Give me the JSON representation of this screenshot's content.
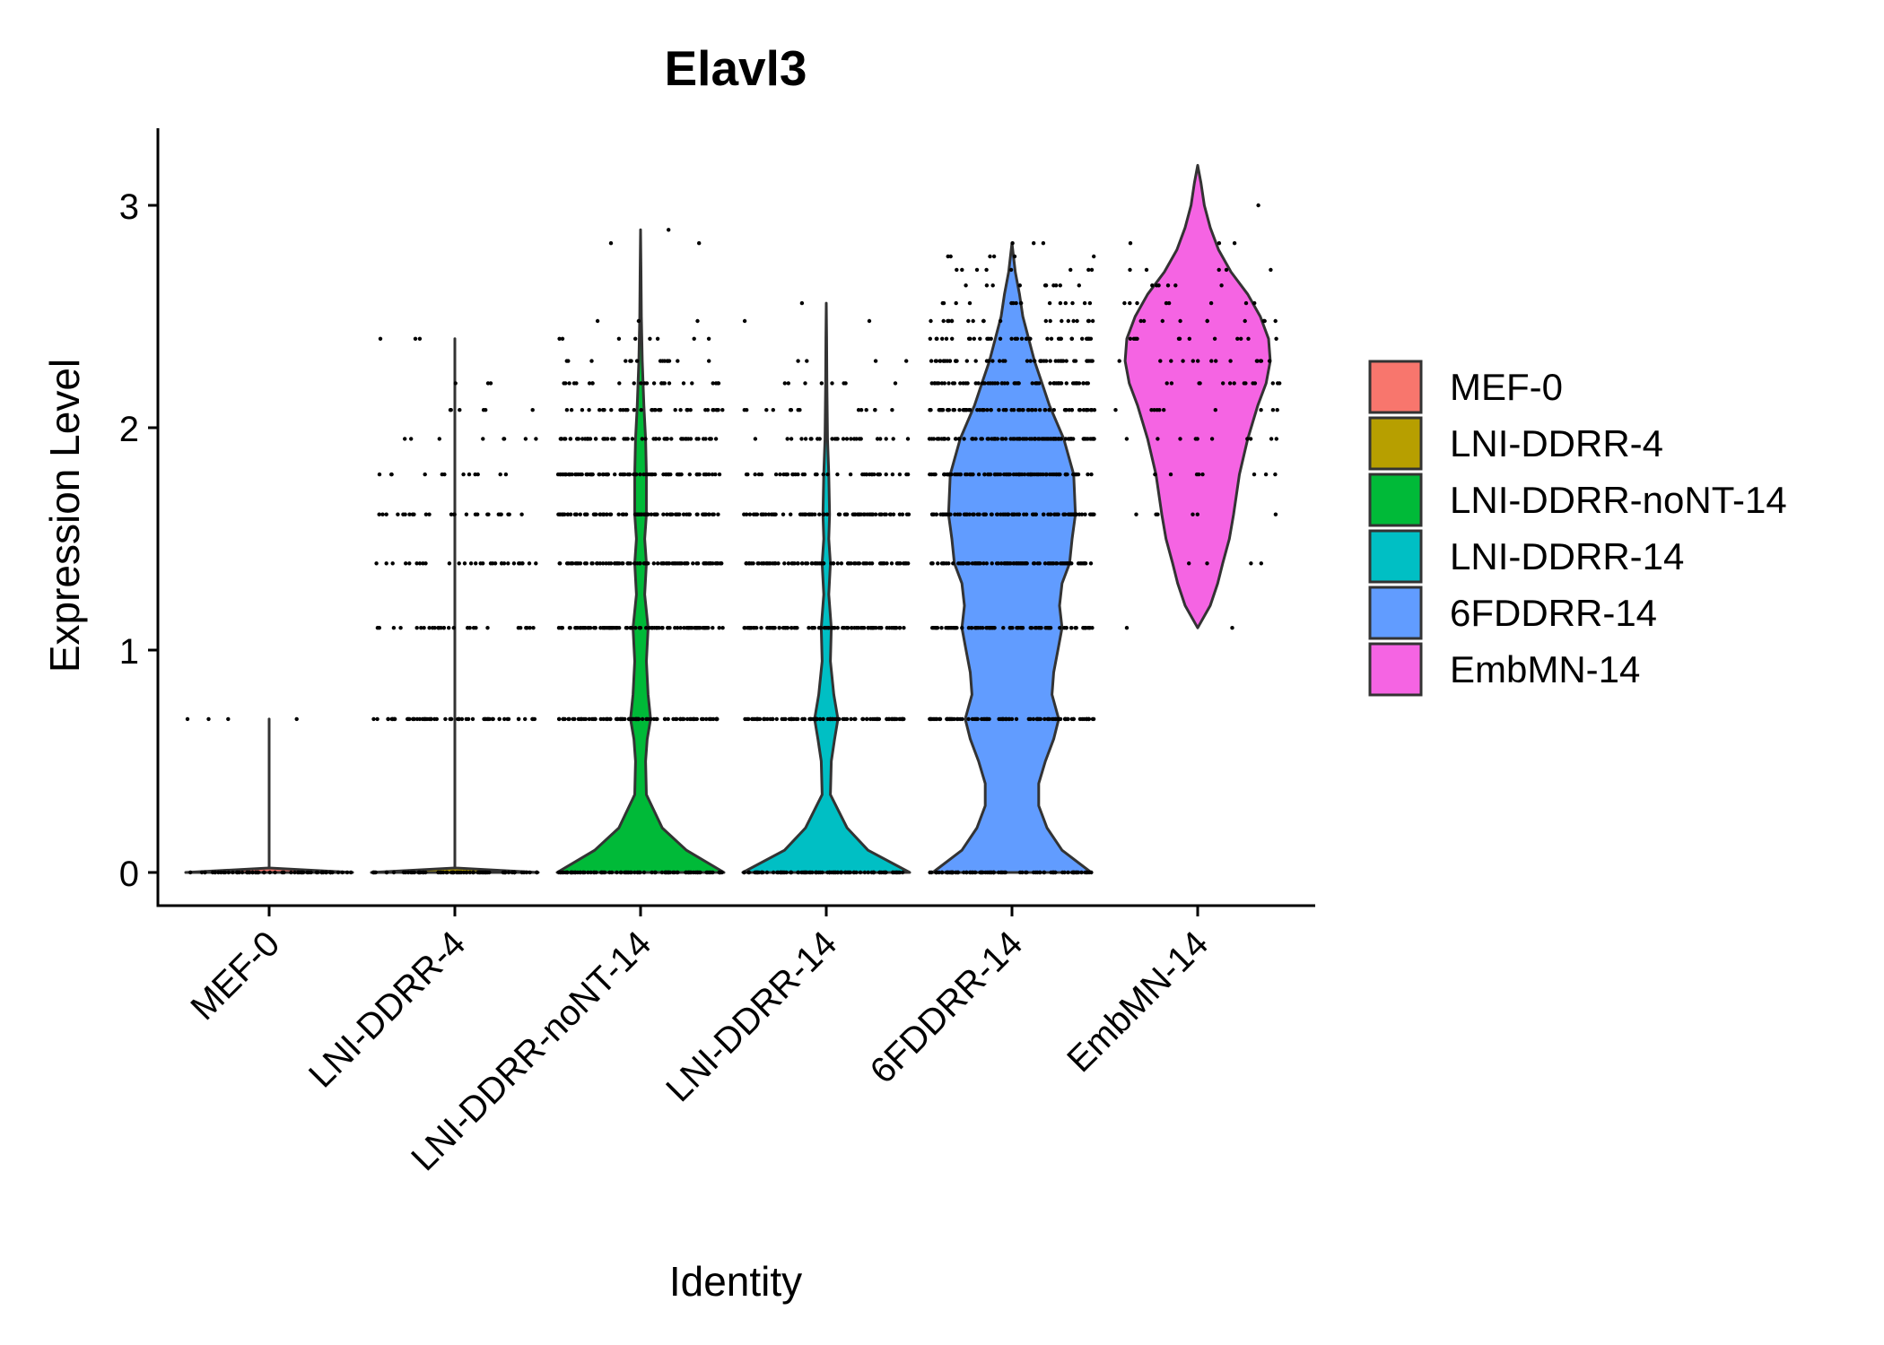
{
  "chart_data": {
    "type": "violin",
    "title": "Elavl3",
    "xlabel": "Identity",
    "ylabel": "Expression Level",
    "ylim": [
      -0.15,
      3.35
    ],
    "yticks": [
      0,
      1,
      2,
      3
    ],
    "grid": false,
    "legend_position": "right",
    "categories": [
      "MEF-0",
      "LNI-DDRR-4",
      "LNI-DDRR-noNT-14",
      "LNI-DDRR-14",
      "6FDDRR-14",
      "EmbMN-14"
    ],
    "expression_levels": [
      0,
      0.69,
      1.1,
      1.39,
      1.61,
      1.79,
      1.95,
      2.08,
      2.2,
      2.3,
      2.4,
      2.48,
      2.56,
      2.64,
      2.71,
      2.77,
      2.83
    ],
    "series": [
      {
        "name": "MEF-0",
        "color": "#F8766D",
        "max": 0.69,
        "violin_density": [
          [
            0,
            1.0
          ],
          [
            0.02,
            0.0
          ],
          [
            0.69,
            0.0
          ]
        ],
        "dot_levels": [
          0,
          0.69
        ],
        "dot_counts": [
          60,
          4
        ]
      },
      {
        "name": "LNI-DDRR-4",
        "color": "#B79F00",
        "max": 2.4,
        "violin_density": [
          [
            0,
            1.0
          ],
          [
            0.02,
            0.0
          ],
          [
            2.4,
            0.0
          ]
        ],
        "dot_levels": [
          0,
          0.69,
          1.1,
          1.39,
          1.61,
          1.79,
          1.95,
          2.08,
          2.2,
          2.4
        ],
        "dot_counts": [
          70,
          60,
          30,
          30,
          25,
          12,
          8,
          6,
          3,
          3
        ]
      },
      {
        "name": "LNI-DDRR-noNT-14",
        "color": "#00BA38",
        "max": 2.89,
        "violin_density": [
          [
            0,
            1.0
          ],
          [
            0.1,
            0.55
          ],
          [
            0.2,
            0.26
          ],
          [
            0.35,
            0.07
          ],
          [
            0.5,
            0.06
          ],
          [
            0.6,
            0.08
          ],
          [
            0.69,
            0.12
          ],
          [
            0.8,
            0.09
          ],
          [
            0.95,
            0.07
          ],
          [
            1.1,
            0.09
          ],
          [
            1.25,
            0.05
          ],
          [
            1.39,
            0.07
          ],
          [
            1.5,
            0.05
          ],
          [
            1.61,
            0.07
          ],
          [
            1.79,
            0.07
          ],
          [
            1.95,
            0.06
          ],
          [
            2.1,
            0.04
          ],
          [
            2.3,
            0.02
          ],
          [
            2.5,
            0.01
          ],
          [
            2.7,
            0.005
          ],
          [
            2.89,
            0.0
          ]
        ],
        "dot_levels": [
          0,
          0.69,
          1.1,
          1.39,
          1.61,
          1.79,
          1.95,
          2.08,
          2.2,
          2.3,
          2.4,
          2.48,
          2.83,
          2.89
        ],
        "dot_counts": [
          90,
          90,
          90,
          90,
          90,
          80,
          55,
          35,
          25,
          15,
          8,
          3,
          2,
          1
        ]
      },
      {
        "name": "LNI-DDRR-14",
        "color": "#00BFC4",
        "max": 2.56,
        "violin_density": [
          [
            0,
            1.0
          ],
          [
            0.1,
            0.5
          ],
          [
            0.2,
            0.25
          ],
          [
            0.35,
            0.05
          ],
          [
            0.5,
            0.06
          ],
          [
            0.6,
            0.1
          ],
          [
            0.69,
            0.14
          ],
          [
            0.8,
            0.09
          ],
          [
            0.95,
            0.05
          ],
          [
            1.1,
            0.06
          ],
          [
            1.25,
            0.03
          ],
          [
            1.39,
            0.05
          ],
          [
            1.5,
            0.03
          ],
          [
            1.61,
            0.04
          ],
          [
            1.79,
            0.03
          ],
          [
            1.95,
            0.015
          ],
          [
            2.2,
            0.008
          ],
          [
            2.4,
            0.004
          ],
          [
            2.56,
            0.0
          ]
        ],
        "dot_levels": [
          0,
          0.69,
          1.1,
          1.39,
          1.61,
          1.79,
          1.95,
          2.08,
          2.2,
          2.3,
          2.48,
          2.56
        ],
        "dot_counts": [
          90,
          90,
          85,
          80,
          70,
          40,
          25,
          14,
          8,
          4,
          2,
          1
        ]
      },
      {
        "name": "6FDDRR-14",
        "color": "#619CFF",
        "max": 2.83,
        "violin_density": [
          [
            0,
            0.95
          ],
          [
            0.1,
            0.6
          ],
          [
            0.2,
            0.42
          ],
          [
            0.3,
            0.32
          ],
          [
            0.4,
            0.32
          ],
          [
            0.5,
            0.4
          ],
          [
            0.6,
            0.5
          ],
          [
            0.69,
            0.56
          ],
          [
            0.8,
            0.48
          ],
          [
            0.9,
            0.5
          ],
          [
            1.0,
            0.55
          ],
          [
            1.1,
            0.6
          ],
          [
            1.2,
            0.57
          ],
          [
            1.3,
            0.6
          ],
          [
            1.39,
            0.69
          ],
          [
            1.5,
            0.72
          ],
          [
            1.61,
            0.76
          ],
          [
            1.79,
            0.74
          ],
          [
            1.95,
            0.62
          ],
          [
            2.1,
            0.45
          ],
          [
            2.2,
            0.36
          ],
          [
            2.3,
            0.27
          ],
          [
            2.4,
            0.2
          ],
          [
            2.5,
            0.13
          ],
          [
            2.6,
            0.09
          ],
          [
            2.7,
            0.04
          ],
          [
            2.83,
            0.0
          ]
        ],
        "dot_levels": [
          0,
          0.69,
          1.1,
          1.39,
          1.61,
          1.79,
          1.95,
          2.08,
          2.2,
          2.3,
          2.4,
          2.48,
          2.56,
          2.64,
          2.71,
          2.77,
          2.83
        ],
        "dot_counts": [
          90,
          90,
          90,
          90,
          90,
          90,
          90,
          70,
          60,
          45,
          35,
          20,
          15,
          10,
          8,
          6,
          3
        ]
      },
      {
        "name": "EmbMN-14",
        "color": "#F564E3",
        "max": 3.18,
        "violin_density": [
          [
            1.1,
            0.0
          ],
          [
            1.2,
            0.15
          ],
          [
            1.3,
            0.24
          ],
          [
            1.39,
            0.3
          ],
          [
            1.5,
            0.38
          ],
          [
            1.61,
            0.43
          ],
          [
            1.79,
            0.5
          ],
          [
            1.95,
            0.6
          ],
          [
            2.1,
            0.72
          ],
          [
            2.2,
            0.82
          ],
          [
            2.3,
            0.87
          ],
          [
            2.4,
            0.85
          ],
          [
            2.5,
            0.75
          ],
          [
            2.6,
            0.6
          ],
          [
            2.7,
            0.4
          ],
          [
            2.8,
            0.25
          ],
          [
            2.9,
            0.15
          ],
          [
            3.0,
            0.08
          ],
          [
            3.1,
            0.04
          ],
          [
            3.18,
            0.0
          ]
        ],
        "dot_levels": [
          1.1,
          1.39,
          1.61,
          1.79,
          1.95,
          2.08,
          2.2,
          2.3,
          2.4,
          2.48,
          2.56,
          2.64,
          2.71,
          2.83,
          3.0
        ],
        "dot_counts": [
          2,
          4,
          6,
          8,
          10,
          10,
          14,
          14,
          12,
          10,
          8,
          6,
          5,
          3,
          1
        ]
      }
    ]
  }
}
